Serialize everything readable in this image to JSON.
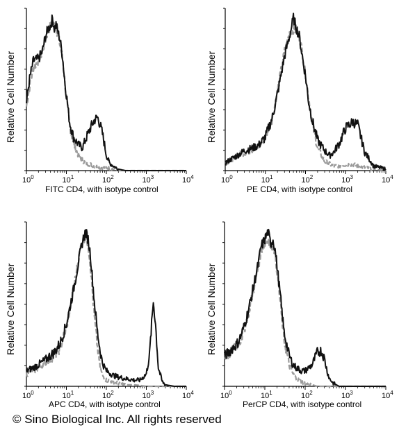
{
  "copyright": "© Sino Biological Inc. All rights reserved",
  "colors": {
    "sample": "#111111",
    "isotype": "#9a9a9a",
    "axis": "#000000"
  },
  "chart_data": [
    {
      "type": "line",
      "ylabel": "Relative Cell Number",
      "xlabel": "FITC  CD4,  with isotype control",
      "xscale": "log",
      "xlim": [
        1,
        10000
      ],
      "xticks": [
        "10^0",
        "10^1",
        "10^2",
        "10^3",
        "10^4"
      ],
      "ylim": [
        0,
        1
      ],
      "series": [
        {
          "style": "solid",
          "x": [
            1,
            1.2,
            1.5,
            2,
            2.5,
            3,
            3.5,
            4,
            4.5,
            5,
            5.5,
            6,
            7,
            8,
            9,
            10,
            12,
            15,
            20,
            25,
            30,
            40,
            50,
            60,
            70,
            80,
            90,
            100,
            120,
            150,
            200,
            300,
            500,
            1000,
            10000
          ],
          "y": [
            0.45,
            0.6,
            0.72,
            0.73,
            0.78,
            0.88,
            0.93,
            0.95,
            1.0,
            0.93,
            0.96,
            0.92,
            0.85,
            0.75,
            0.6,
            0.5,
            0.32,
            0.22,
            0.17,
            0.15,
            0.2,
            0.28,
            0.33,
            0.35,
            0.3,
            0.24,
            0.17,
            0.1,
            0.05,
            0.03,
            0.01,
            0,
            0,
            0,
            0
          ]
        },
        {
          "style": "dashed",
          "x": [
            1,
            1.2,
            1.5,
            2,
            2.5,
            3,
            3.5,
            4,
            4.5,
            5,
            5.5,
            6,
            7,
            8,
            9,
            10,
            12,
            15,
            20,
            25,
            30,
            40,
            50,
            70,
            100,
            150,
            200,
            500,
            10000
          ],
          "y": [
            0.42,
            0.55,
            0.68,
            0.72,
            0.78,
            0.86,
            0.92,
            0.95,
            0.96,
            0.95,
            0.94,
            0.9,
            0.82,
            0.74,
            0.6,
            0.48,
            0.3,
            0.18,
            0.1,
            0.07,
            0.05,
            0.04,
            0.03,
            0.02,
            0.02,
            0.01,
            0,
            0,
            0
          ]
        }
      ]
    },
    {
      "type": "line",
      "ylabel": "Relative Cell Number",
      "xlabel": "PE  CD4,  with isotype control",
      "xscale": "log",
      "xlim": [
        1,
        10000
      ],
      "xticks": [
        "10^0",
        "10^1",
        "10^2",
        "10^3",
        "10^4"
      ],
      "ylim": [
        0,
        1
      ],
      "series": [
        {
          "style": "solid",
          "x": [
            1,
            1.5,
            2,
            3,
            5,
            7,
            10,
            15,
            20,
            30,
            40,
            50,
            60,
            70,
            80,
            100,
            120,
            150,
            200,
            300,
            400,
            500,
            700,
            1000,
            1500,
            2000,
            2500,
            3000,
            4000,
            5000,
            7000,
            10000
          ],
          "y": [
            0.05,
            0.08,
            0.1,
            0.13,
            0.15,
            0.17,
            0.22,
            0.35,
            0.5,
            0.75,
            0.88,
            1.0,
            0.93,
            0.88,
            0.78,
            0.62,
            0.45,
            0.32,
            0.2,
            0.13,
            0.1,
            0.12,
            0.18,
            0.28,
            0.32,
            0.3,
            0.2,
            0.12,
            0.07,
            0.03,
            0.02,
            0.01
          ]
        },
        {
          "style": "dashed",
          "x": [
            1,
            1.5,
            2,
            3,
            5,
            7,
            10,
            15,
            20,
            30,
            40,
            50,
            60,
            70,
            80,
            100,
            120,
            150,
            200,
            300,
            500,
            700,
            1000,
            1500,
            2000,
            3000,
            5000,
            10000
          ],
          "y": [
            0.05,
            0.07,
            0.1,
            0.12,
            0.14,
            0.16,
            0.22,
            0.35,
            0.52,
            0.78,
            0.9,
            0.93,
            0.92,
            0.88,
            0.8,
            0.63,
            0.48,
            0.3,
            0.15,
            0.06,
            0.03,
            0.03,
            0.04,
            0.04,
            0.03,
            0.02,
            0.01,
            0
          ]
        }
      ]
    },
    {
      "type": "line",
      "ylabel": "Relative Cell Number",
      "xlabel": "APC CD4, with isotype control",
      "xscale": "log",
      "xlim": [
        1,
        10000
      ],
      "xticks": [
        "10^0",
        "10^1",
        "10^2",
        "10^3",
        "10^4"
      ],
      "ylim": [
        0,
        1
      ],
      "series": [
        {
          "style": "solid",
          "x": [
            1,
            1.5,
            2,
            3,
            4,
            5,
            7,
            10,
            12,
            15,
            20,
            25,
            30,
            35,
            40,
            50,
            60,
            70,
            80,
            100,
            150,
            200,
            300,
            500,
            700,
            1000,
            1200,
            1400,
            1500,
            1700,
            2000,
            2500,
            3000,
            5000,
            10000
          ],
          "y": [
            0.1,
            0.12,
            0.14,
            0.17,
            0.2,
            0.22,
            0.28,
            0.4,
            0.5,
            0.62,
            0.8,
            0.93,
            1.0,
            0.95,
            0.85,
            0.55,
            0.35,
            0.23,
            0.15,
            0.1,
            0.07,
            0.06,
            0.05,
            0.04,
            0.04,
            0.08,
            0.2,
            0.45,
            0.55,
            0.4,
            0.12,
            0.03,
            0.01,
            0,
            0
          ]
        },
        {
          "style": "dashed",
          "x": [
            1,
            1.5,
            2,
            3,
            5,
            7,
            10,
            12,
            15,
            20,
            25,
            30,
            35,
            40,
            50,
            60,
            70,
            80,
            100,
            150,
            200,
            300,
            500,
            1000,
            2000,
            10000
          ],
          "y": [
            0.08,
            0.1,
            0.12,
            0.15,
            0.2,
            0.25,
            0.38,
            0.48,
            0.62,
            0.82,
            0.95,
            0.97,
            0.92,
            0.78,
            0.45,
            0.25,
            0.12,
            0.07,
            0.04,
            0.03,
            0.02,
            0.01,
            0.01,
            0,
            0,
            0
          ]
        }
      ]
    },
    {
      "type": "line",
      "ylabel": "Relative Cell Number",
      "xlabel": "PerCP CD4, with isotype control",
      "xscale": "log",
      "xlim": [
        1,
        10000
      ],
      "xticks": [
        "10^0",
        "10^1",
        "10^2",
        "10^3",
        "10^4"
      ],
      "ylim": [
        0,
        1
      ],
      "series": [
        {
          "style": "solid",
          "x": [
            1,
            1.3,
            1.6,
            2,
            2.5,
            3,
            4,
            5,
            6,
            7,
            8,
            10,
            12,
            14,
            16,
            18,
            20,
            25,
            30,
            40,
            50,
            60,
            80,
            100,
            150,
            200,
            250,
            300,
            350,
            400,
            500,
            700,
            1000,
            10000
          ],
          "y": [
            0.2,
            0.22,
            0.25,
            0.27,
            0.32,
            0.38,
            0.5,
            0.62,
            0.72,
            0.8,
            0.9,
            0.95,
            1.0,
            0.92,
            0.95,
            0.88,
            0.78,
            0.55,
            0.35,
            0.2,
            0.14,
            0.12,
            0.1,
            0.1,
            0.14,
            0.22,
            0.23,
            0.18,
            0.1,
            0.05,
            0.02,
            0,
            0,
            0
          ]
        },
        {
          "style": "dashed",
          "x": [
            1,
            1.3,
            1.6,
            2,
            2.5,
            3,
            4,
            5,
            6,
            7,
            8,
            10,
            12,
            14,
            16,
            18,
            20,
            25,
            30,
            40,
            50,
            60,
            80,
            100,
            150,
            200,
            300,
            1000,
            10000
          ],
          "y": [
            0.18,
            0.2,
            0.24,
            0.26,
            0.3,
            0.36,
            0.48,
            0.6,
            0.7,
            0.78,
            0.88,
            0.92,
            0.95,
            0.9,
            0.93,
            0.85,
            0.75,
            0.5,
            0.3,
            0.14,
            0.08,
            0.05,
            0.03,
            0.02,
            0.01,
            0,
            0,
            0,
            0
          ]
        }
      ]
    }
  ]
}
